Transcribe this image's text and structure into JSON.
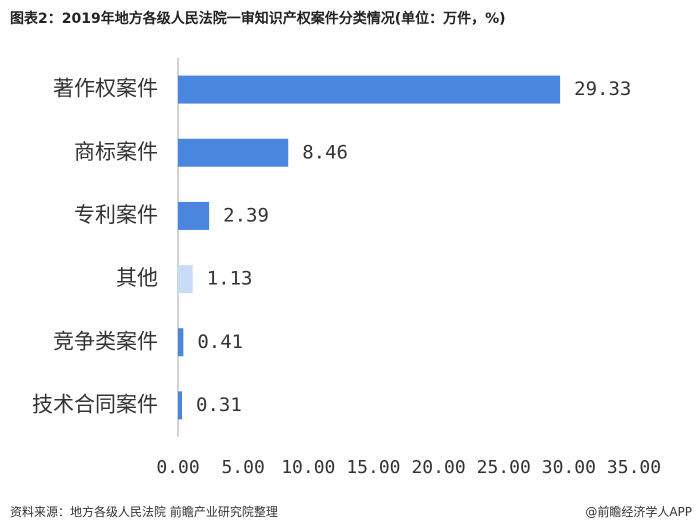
{
  "title": "图表2：2019年地方各级人民法院一审知识产权案件分类情况(单位：万件，%)",
  "footer": {
    "source": "资料来源：地方各级人民法院 前瞻产业研究院整理",
    "brand": "@前瞻经济学人APP"
  },
  "colors": {
    "bar": "#4a86de",
    "bar_light": "#c8dcf8",
    "axis": "#aaaaaa"
  },
  "chart_data": {
    "type": "bar",
    "orientation": "horizontal",
    "title": "图表2：2019年地方各级人民法院一审知识产权案件分类情况(单位：万件，%)",
    "categories": [
      "著作权案件",
      "商标案件",
      "专利案件",
      "其他",
      "竞争类案件",
      "技术合同案件"
    ],
    "values": [
      29.33,
      8.46,
      2.39,
      1.13,
      0.41,
      0.31
    ],
    "value_labels": [
      "29.33",
      "8.46",
      "2.39",
      "1.13",
      "0.41",
      "0.31"
    ],
    "xlim": [
      0,
      35
    ],
    "xticks": [
      0,
      5,
      10,
      15,
      20,
      25,
      30,
      35
    ],
    "xtick_labels": [
      "0.00",
      "5.00",
      "10.00",
      "15.00",
      "20.00",
      "25.00",
      "30.00",
      "35.00"
    ],
    "highlighted_light": [
      "其他"
    ],
    "grid": false,
    "legend": "none"
  }
}
